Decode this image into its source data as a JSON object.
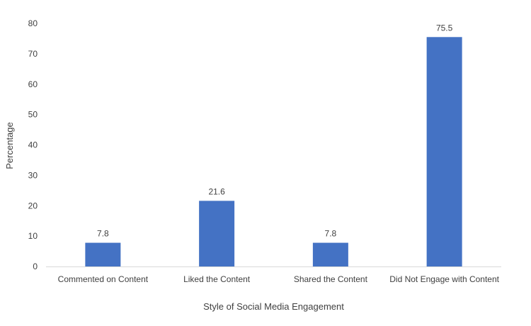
{
  "chart_data": {
    "type": "bar",
    "title": "",
    "xlabel": "Style of Social Media Engagement",
    "ylabel": "Percentage",
    "categories": [
      "Commented on Content",
      "Liked the Content",
      "Shared the Content",
      "Did Not Engage with Content"
    ],
    "values": [
      7.8,
      21.6,
      7.8,
      75.5
    ],
    "data_labels": [
      "7.8",
      "21.6",
      "7.8",
      "75.5"
    ],
    "ylim": [
      0,
      80
    ],
    "yticks": [
      0,
      10,
      20,
      30,
      40,
      50,
      60,
      70,
      80
    ],
    "grid": false,
    "legend": "none",
    "bar_color": "#4472C4",
    "axis_color": "#D9D9D9"
  }
}
